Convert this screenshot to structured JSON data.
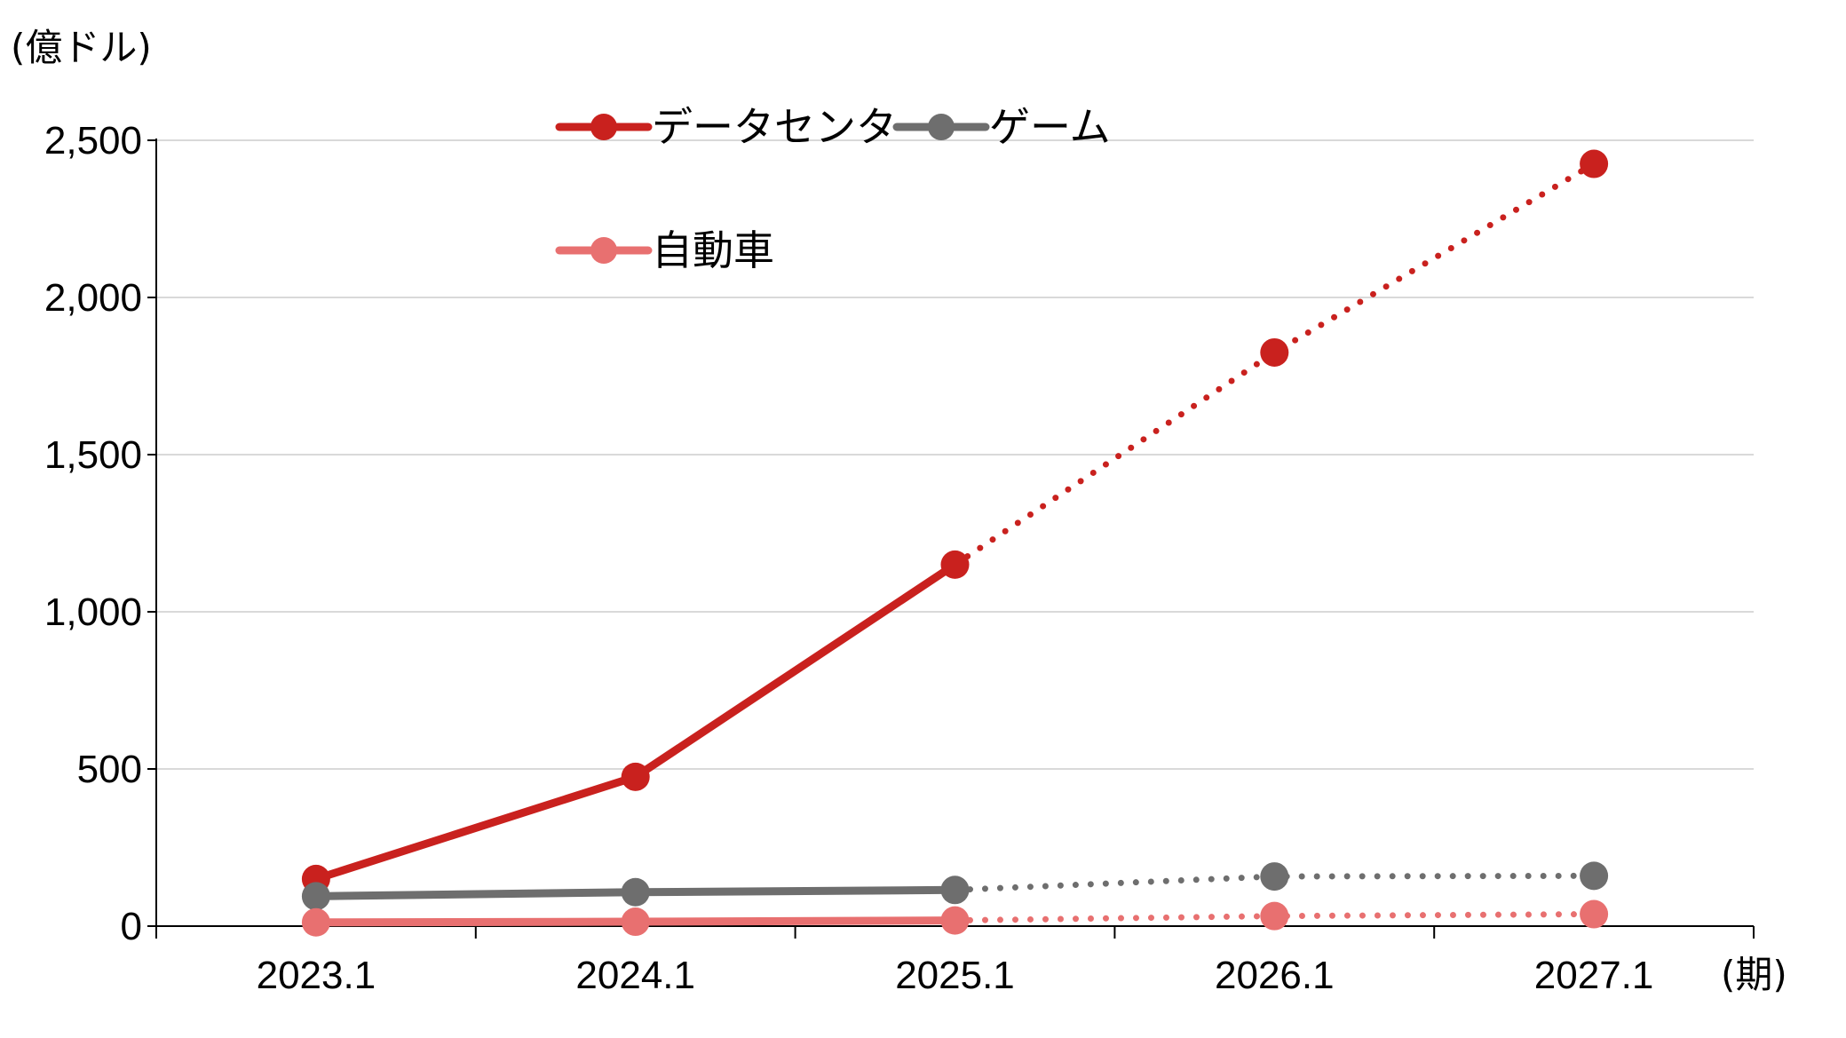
{
  "chart_data": {
    "type": "line",
    "y_unit_label": "(億ドル)",
    "x_unit_label": "(期)",
    "categories": [
      "2023.1",
      "2024.1",
      "2025.1",
      "2026.1",
      "2027.1"
    ],
    "actual_through_index": 2,
    "projected_from_index": 2,
    "ylim": [
      0,
      2500
    ],
    "yticks": [
      0,
      500,
      1000,
      1500,
      2000,
      2500
    ],
    "ytick_labels": [
      "0",
      "500",
      "1,000",
      "1,500",
      "2,000",
      "2,500"
    ],
    "grid": "horizontal",
    "legend_position": "top-center",
    "series": [
      {
        "name": "データセンター",
        "color": "#C9211E",
        "values": [
          150,
          475,
          1150,
          1825,
          2425
        ]
      },
      {
        "name": "ゲーム",
        "color": "#6E6E6E",
        "values": [
          95,
          108,
          115,
          158,
          160
        ]
      },
      {
        "name": "自動車",
        "color": "#E87070",
        "values": [
          12,
          14,
          18,
          32,
          38
        ]
      }
    ]
  }
}
